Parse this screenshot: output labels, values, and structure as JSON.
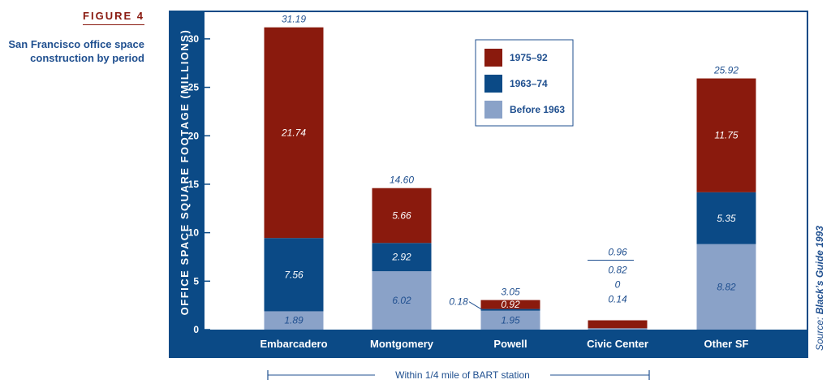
{
  "figure_label": "FIGURE 4",
  "figure_title": "San Francisco office space construction by period",
  "source_prefix": "Source: ",
  "source_name": "Black’s Guide 1993",
  "bracket_label": "Within 1/4 mile of BART station",
  "colors": {
    "panel": "#0b4a86",
    "plot_bg": "#ffffff",
    "before_1963": "#8aa2c8",
    "s1963_74": "#0b4a86",
    "s1975_92": "#8a1a0d",
    "text_blue": "#1f4f8f"
  },
  "chart_data": {
    "type": "bar",
    "stacked": true,
    "title": "",
    "xlabel": "",
    "ylabel": "OFFICE SPACE SQUARE FOOTAGE (MILLIONS)",
    "ylim": [
      0,
      32
    ],
    "yticks": [
      "0",
      "5",
      "10",
      "15",
      "20",
      "25",
      "30"
    ],
    "categories": [
      "Embarcadero",
      "Montgomery",
      "Powell",
      "Civic Center",
      "Other SF"
    ],
    "series": [
      {
        "name": "Before 1963",
        "values": [
          1.89,
          6.02,
          1.95,
          0.14,
          8.82
        ],
        "labels": [
          "1.89",
          "6.02",
          "1.95",
          "0.14",
          "8.82"
        ]
      },
      {
        "name": "1963–74",
        "values": [
          7.56,
          2.92,
          0.18,
          0,
          5.35
        ],
        "labels": [
          "7.56",
          "2.92",
          "0.18",
          "0",
          "5.35"
        ]
      },
      {
        "name": "1975–92",
        "values": [
          21.74,
          5.66,
          0.92,
          0.82,
          11.75
        ],
        "labels": [
          "21.74",
          "5.66",
          "0.92",
          "0.82",
          "11.75"
        ]
      }
    ],
    "totals": [
      "31.19",
      "14.60",
      "3.05",
      "0.96",
      "25.92"
    ],
    "legend": {
      "position": "top-center",
      "order": [
        "1975–92",
        "1963–74",
        "Before 1963"
      ]
    },
    "grid": false
  }
}
